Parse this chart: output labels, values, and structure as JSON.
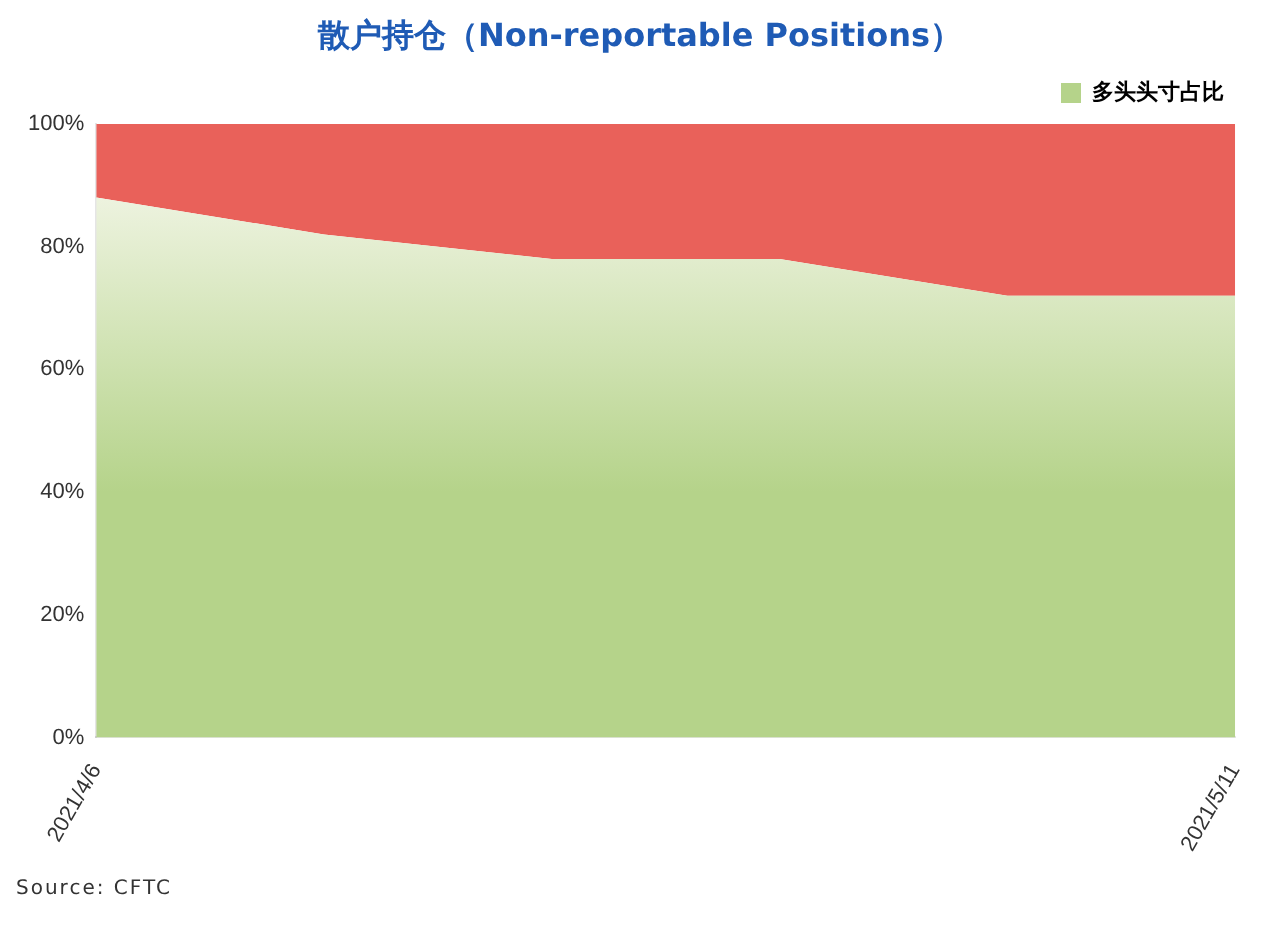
{
  "chart_data": {
    "type": "area",
    "title": "散户持仓（Non-reportable Positions）",
    "categories": [
      "2021/4/6",
      null,
      null,
      null,
      null,
      "2021/5/11"
    ],
    "stacked": true,
    "series": [
      {
        "name": "多头头寸占比",
        "color": "#b5d38a",
        "values": [
          88,
          82,
          78,
          78,
          72,
          72
        ]
      },
      {
        "color": "#e9615a",
        "values": [
          12,
          18,
          22,
          22,
          28,
          28
        ]
      }
    ],
    "ylim": [
      0,
      100
    ],
    "yticks": [
      {
        "value": 0,
        "label": "0%"
      },
      {
        "value": 20,
        "label": "20%"
      },
      {
        "value": 40,
        "label": "40%"
      },
      {
        "value": 60,
        "label": "60%"
      },
      {
        "value": 80,
        "label": "80%"
      },
      {
        "value": 100,
        "label": "100%"
      }
    ],
    "legend": "top right",
    "annotations": [
      "Source: CFTC"
    ]
  }
}
